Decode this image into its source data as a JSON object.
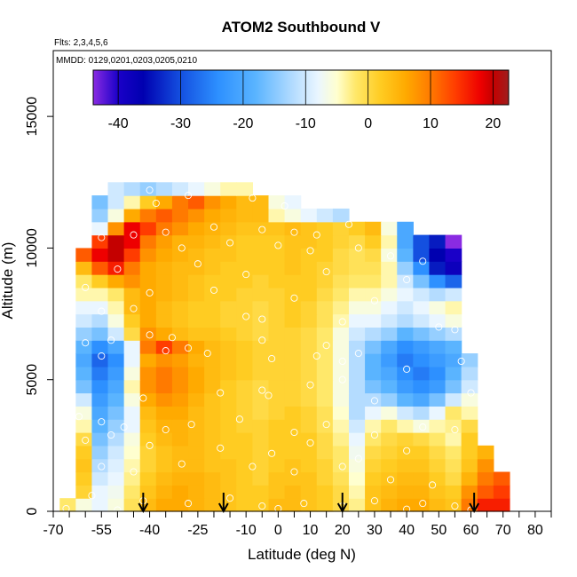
{
  "chart_data": {
    "type": "heatmap",
    "title": "ATOM2 Southbound V",
    "annotations": [
      "Flts: 2,3,4,5,6",
      "MMDD: 0129,0201,0203,0205,0210"
    ],
    "xlabel": "Latitude (deg N)",
    "ylabel": "Altitude (m)",
    "xlim": [
      -70,
      85
    ],
    "ylim": [
      0,
      17500
    ],
    "x_ticks": [
      -70,
      -55,
      -40,
      -25,
      -10,
      0,
      10,
      20,
      30,
      40,
      50,
      60,
      70,
      80
    ],
    "x_tick_labels": [
      "-70",
      "-55",
      "-40",
      "-25",
      "-10",
      "0",
      "10",
      "20",
      "30",
      "40",
      "50",
      "60",
      "70",
      "80"
    ],
    "x_minor_ticks": [
      -65,
      -60,
      -50,
      -45,
      -35,
      -30,
      -20,
      -15,
      -5,
      5,
      15,
      25,
      35,
      45,
      55,
      65,
      75,
      85
    ],
    "y_ticks": [
      0,
      5000,
      10000,
      15000
    ],
    "y_tick_labels": [
      "0",
      "5000",
      "10000",
      "15000"
    ],
    "colorbar": {
      "vmin": -44,
      "vmax": 22.5,
      "ticks": [
        -40,
        -30,
        -20,
        -10,
        0,
        10,
        20
      ],
      "tick_labels": [
        "-40",
        "-30",
        "-20",
        "-10",
        "0",
        "10",
        "20"
      ],
      "stops": [
        [
          -44,
          "#8a2be2"
        ],
        [
          -40,
          "#1a00c8"
        ],
        [
          -36,
          "#0000b0"
        ],
        [
          -30,
          "#1450e0"
        ],
        [
          -24,
          "#2d90ff"
        ],
        [
          -18,
          "#5ab4ff"
        ],
        [
          -12,
          "#b4dcff"
        ],
        [
          -8,
          "#eaf6ff"
        ],
        [
          -5,
          "#ffffcf"
        ],
        [
          -2,
          "#ffe86a"
        ],
        [
          2,
          "#ffcc22"
        ],
        [
          6,
          "#ffaa00"
        ],
        [
          10,
          "#ff7a00"
        ],
        [
          14,
          "#ff3c00"
        ],
        [
          18,
          "#ee0000"
        ],
        [
          20,
          "#c40000"
        ],
        [
          22.5,
          "#a01e1e"
        ]
      ]
    },
    "grid": false,
    "lat_edges": [
      -68,
      -63,
      -58,
      -53,
      -48,
      -43,
      -38,
      -33,
      -28,
      -23,
      -18,
      -13,
      -8,
      -3,
      2,
      7,
      12,
      17,
      22,
      27,
      32,
      37,
      42,
      47,
      52,
      57,
      62,
      67,
      72
    ],
    "alt_edges": [
      0,
      500,
      1000,
      1500,
      2000,
      2500,
      3000,
      3500,
      4000,
      4500,
      5000,
      5500,
      6000,
      6500,
      7000,
      7500,
      8000,
      8500,
      9000,
      9500,
      10000,
      10500,
      11000,
      11500,
      12000,
      12500
    ],
    "values": [
      [
        -2,
        -6,
        -8,
        -6,
        -1,
        4,
        6,
        6,
        5,
        4,
        3,
        2,
        2,
        4,
        4,
        3,
        2,
        0,
        -3,
        3,
        5,
        6,
        6,
        4,
        3,
        10,
        16,
        16
      ],
      [
        null,
        1,
        -8,
        -7,
        -2,
        3,
        5,
        6,
        5,
        4,
        3,
        2,
        2,
        3,
        4,
        3,
        2,
        0,
        -4,
        3,
        4,
        5,
        5,
        3,
        2,
        8,
        12,
        14
      ],
      [
        null,
        2,
        -10,
        -8,
        -3,
        2,
        4,
        5,
        5,
        4,
        3,
        2,
        1,
        3,
        3,
        3,
        1,
        -1,
        -5,
        2,
        3,
        4,
        4,
        2,
        0,
        5,
        10,
        12
      ],
      [
        null,
        3,
        -12,
        -9,
        -4,
        1,
        3,
        4,
        4,
        3,
        3,
        2,
        1,
        2,
        3,
        2,
        1,
        -2,
        -6,
        1,
        2,
        3,
        3,
        1,
        -1,
        3,
        8,
        null
      ],
      [
        null,
        2,
        -14,
        -10,
        -5,
        1,
        3,
        4,
        4,
        3,
        2,
        2,
        1,
        2,
        2,
        2,
        0,
        -2,
        -7,
        0,
        1,
        2,
        2,
        0,
        -2,
        2,
        5,
        null
      ],
      [
        null,
        0,
        -16,
        -12,
        -6,
        2,
        4,
        5,
        4,
        3,
        2,
        2,
        1,
        2,
        2,
        2,
        0,
        -3,
        -8,
        -2,
        0,
        1,
        0,
        -2,
        -4,
        2,
        null,
        null
      ],
      [
        null,
        -4,
        -18,
        -14,
        -8,
        3,
        5,
        5,
        4,
        3,
        2,
        1,
        1,
        2,
        2,
        1,
        -1,
        -4,
        -10,
        -4,
        -2,
        -4,
        -6,
        -4,
        -3,
        0,
        null,
        null
      ],
      [
        null,
        -6,
        -20,
        -16,
        -8,
        4,
        6,
        6,
        4,
        3,
        2,
        1,
        0,
        1,
        2,
        1,
        -1,
        -5,
        -12,
        -8,
        -6,
        -10,
        -12,
        -8,
        -2,
        -4,
        null,
        null
      ],
      [
        null,
        -10,
        -22,
        -18,
        -6,
        6,
        8,
        7,
        5,
        3,
        2,
        1,
        0,
        1,
        1,
        0,
        -2,
        -6,
        -12,
        -12,
        -14,
        -18,
        -20,
        -16,
        -10,
        -6,
        null,
        null
      ],
      [
        null,
        -16,
        -24,
        -20,
        -4,
        8,
        10,
        8,
        6,
        4,
        2,
        1,
        0,
        1,
        1,
        0,
        -2,
        -6,
        -12,
        -16,
        -18,
        -22,
        -24,
        -22,
        -16,
        -10,
        null,
        null
      ],
      [
        null,
        -18,
        -26,
        -22,
        -6,
        8,
        10,
        8,
        6,
        4,
        3,
        2,
        1,
        1,
        1,
        0,
        -2,
        -6,
        -12,
        -18,
        -20,
        -24,
        -26,
        -24,
        -18,
        -12,
        null,
        null
      ],
      [
        null,
        -20,
        -28,
        -24,
        -8,
        6,
        8,
        7,
        5,
        4,
        3,
        2,
        1,
        1,
        1,
        0,
        -2,
        -6,
        -12,
        -18,
        -22,
        -26,
        -24,
        -22,
        -20,
        -14,
        null,
        null
      ],
      [
        null,
        -18,
        -24,
        -20,
        -8,
        10,
        14,
        10,
        6,
        4,
        3,
        2,
        1,
        1,
        1,
        0,
        -2,
        -6,
        -12,
        -16,
        -20,
        -24,
        -22,
        -20,
        -18,
        null,
        null,
        null
      ],
      [
        null,
        -14,
        -16,
        -10,
        0,
        8,
        6,
        4,
        3,
        3,
        2,
        1,
        0,
        1,
        1,
        0,
        -2,
        -6,
        -10,
        -12,
        -14,
        -18,
        -16,
        -14,
        -12,
        null,
        null,
        null
      ],
      [
        null,
        -10,
        -12,
        -6,
        2,
        6,
        4,
        3,
        2,
        2,
        1,
        1,
        0,
        1,
        2,
        1,
        -1,
        -4,
        -8,
        -8,
        -10,
        -12,
        -10,
        -8,
        -6,
        null,
        null,
        null
      ],
      [
        null,
        -8,
        -8,
        -4,
        4,
        6,
        4,
        3,
        2,
        2,
        1,
        1,
        0,
        1,
        2,
        1,
        -1,
        -3,
        -6,
        -6,
        -8,
        -10,
        -8,
        -6,
        -4,
        null,
        null,
        null
      ],
      [
        null,
        -4,
        -4,
        -2,
        4,
        6,
        5,
        4,
        3,
        2,
        2,
        1,
        1,
        1,
        2,
        2,
        0,
        -2,
        -4,
        -4,
        -6,
        -8,
        -10,
        -12,
        -10,
        null,
        null,
        null
      ],
      [
        null,
        -2,
        2,
        6,
        8,
        6,
        5,
        4,
        3,
        2,
        2,
        2,
        1,
        2,
        2,
        2,
        1,
        -1,
        -2,
        -2,
        -4,
        -10,
        -16,
        -24,
        -28,
        null,
        null,
        null
      ],
      [
        null,
        4,
        12,
        16,
        10,
        6,
        5,
        4,
        4,
        3,
        2,
        2,
        2,
        2,
        3,
        2,
        1,
        0,
        -1,
        -1,
        -4,
        -14,
        -24,
        -34,
        -38,
        null,
        null,
        null
      ],
      [
        null,
        12,
        18,
        20,
        14,
        8,
        6,
        5,
        4,
        3,
        3,
        2,
        2,
        2,
        3,
        2,
        2,
        0,
        -1,
        0,
        -6,
        -18,
        -30,
        -36,
        -40,
        null,
        null,
        null
      ],
      [
        null,
        null,
        14,
        20,
        18,
        10,
        7,
        5,
        5,
        4,
        3,
        2,
        2,
        2,
        3,
        3,
        2,
        1,
        0,
        2,
        -4,
        -20,
        -30,
        -34,
        -44,
        null,
        null,
        null
      ],
      [
        null,
        null,
        -8,
        8,
        18,
        14,
        10,
        8,
        6,
        5,
        4,
        3,
        3,
        3,
        4,
        3,
        2,
        1,
        2,
        4,
        -6,
        -20,
        null,
        null,
        null,
        null,
        null,
        null
      ],
      [
        null,
        null,
        -14,
        -6,
        6,
        10,
        12,
        10,
        8,
        6,
        5,
        4,
        4,
        -4,
        -6,
        -8,
        -10,
        -12,
        null,
        null,
        null,
        null,
        null,
        null,
        null,
        null,
        null,
        null
      ],
      [
        null,
        null,
        -16,
        -10,
        -4,
        2,
        6,
        10,
        12,
        8,
        6,
        4,
        4,
        -6,
        -8,
        null,
        null,
        null,
        null,
        null,
        null,
        null,
        null,
        null,
        null,
        null,
        null,
        null
      ],
      [
        null,
        null,
        null,
        -10,
        -12,
        -14,
        -12,
        -10,
        -8,
        -6,
        -4,
        -4,
        null,
        null,
        null,
        null,
        null,
        null,
        null,
        null,
        null,
        null,
        null,
        null,
        null,
        null,
        null,
        null
      ]
    ],
    "sample_points": [
      [
        -40,
        12200
      ],
      [
        -38,
        11700
      ],
      [
        -28,
        12000
      ],
      [
        -8,
        11900
      ],
      [
        2,
        11600
      ],
      [
        22,
        10900
      ],
      [
        -55,
        10400
      ],
      [
        -35,
        10600
      ],
      [
        -20,
        10800
      ],
      [
        -5,
        10700
      ],
      [
        5,
        10600
      ],
      [
        12,
        10500
      ],
      [
        -45,
        10500
      ],
      [
        -65,
        9800
      ],
      [
        -30,
        10000
      ],
      [
        -15,
        10200
      ],
      [
        0,
        10100
      ],
      [
        10,
        9900
      ],
      [
        25,
        10000
      ],
      [
        35,
        9700
      ],
      [
        45,
        9500
      ],
      [
        -50,
        9200
      ],
      [
        -25,
        9400
      ],
      [
        -10,
        9000
      ],
      [
        15,
        9100
      ],
      [
        40,
        8800
      ],
      [
        -60,
        8500
      ],
      [
        -40,
        8300
      ],
      [
        -20,
        8400
      ],
      [
        5,
        8100
      ],
      [
        30,
        8000
      ],
      [
        -55,
        7600
      ],
      [
        -45,
        7700
      ],
      [
        -10,
        7400
      ],
      [
        -5,
        7300
      ],
      [
        20,
        7200
      ],
      [
        50,
        7000
      ],
      [
        55,
        6900
      ],
      [
        -60,
        6400
      ],
      [
        -52,
        6500
      ],
      [
        -40,
        6700
      ],
      [
        -33,
        6600
      ],
      [
        -5,
        6500
      ],
      [
        15,
        6300
      ],
      [
        25,
        6000
      ],
      [
        -68,
        5700
      ],
      [
        -55,
        5900
      ],
      [
        -35,
        6100
      ],
      [
        -28,
        6200
      ],
      [
        -22,
        6000
      ],
      [
        -2,
        5800
      ],
      [
        12,
        5900
      ],
      [
        20,
        5700
      ],
      [
        40,
        5400
      ],
      [
        57,
        5700
      ],
      [
        -42,
        4300
      ],
      [
        -18,
        4500
      ],
      [
        -5,
        4600
      ],
      [
        -3,
        4400
      ],
      [
        10,
        4800
      ],
      [
        20,
        5000
      ],
      [
        30,
        4200
      ],
      [
        60,
        4500
      ],
      [
        -62,
        3600
      ],
      [
        -55,
        3400
      ],
      [
        -48,
        3200
      ],
      [
        -35,
        3100
      ],
      [
        -27,
        3300
      ],
      [
        -12,
        3500
      ],
      [
        5,
        3000
      ],
      [
        15,
        3300
      ],
      [
        30,
        2900
      ],
      [
        45,
        3200
      ],
      [
        55,
        3100
      ],
      [
        -60,
        2700
      ],
      [
        -52,
        2900
      ],
      [
        -40,
        2500
      ],
      [
        -18,
        2400
      ],
      [
        -2,
        2200
      ],
      [
        10,
        2600
      ],
      [
        25,
        2000
      ],
      [
        40,
        2300
      ],
      [
        -55,
        1700
      ],
      [
        -45,
        1500
      ],
      [
        -30,
        1800
      ],
      [
        -8,
        1700
      ],
      [
        5,
        1500
      ],
      [
        20,
        1700
      ],
      [
        35,
        1200
      ],
      [
        48,
        1000
      ],
      [
        -58,
        600
      ],
      [
        -42,
        400
      ],
      [
        -28,
        300
      ],
      [
        -15,
        500
      ],
      [
        -5,
        200
      ],
      [
        8,
        300
      ],
      [
        20,
        200
      ],
      [
        30,
        400
      ],
      [
        45,
        300
      ],
      [
        55,
        200
      ],
      [
        -66,
        100
      ],
      [
        -50,
        50
      ],
      [
        0,
        100
      ],
      [
        40,
        80
      ],
      [
        60,
        50
      ]
    ],
    "flight_markers": [
      -42,
      -17,
      20,
      61
    ]
  }
}
